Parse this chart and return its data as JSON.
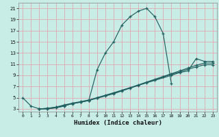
{
  "xlabel": "Humidex (Indice chaleur)",
  "xlim": [
    -0.5,
    23.5
  ],
  "ylim": [
    2.5,
    22
  ],
  "xticks": [
    0,
    1,
    2,
    3,
    4,
    5,
    6,
    7,
    8,
    9,
    10,
    11,
    12,
    13,
    14,
    15,
    16,
    17,
    18,
    19,
    20,
    21,
    22,
    23
  ],
  "yticks": [
    3,
    5,
    7,
    9,
    11,
    13,
    15,
    17,
    19,
    21
  ],
  "bg_color": "#c8ece6",
  "grid_color": "#e0a8b0",
  "line_color": "#206060",
  "lines": [
    {
      "x": [
        0,
        1,
        2,
        3,
        4,
        5,
        6,
        7,
        8,
        9,
        10,
        11,
        12,
        13,
        14,
        15,
        16,
        17,
        18
      ],
      "y": [
        5,
        3.5,
        3,
        3,
        3.2,
        3.5,
        4,
        4.2,
        4.5,
        10,
        13,
        15,
        18,
        19.5,
        20.5,
        21,
        19.5,
        16.5,
        7.5
      ]
    },
    {
      "x": [
        2,
        3,
        4,
        5,
        6,
        7,
        8,
        9,
        18,
        19,
        20,
        21,
        22,
        23
      ],
      "y": [
        3,
        3,
        3.2,
        3.5,
        4,
        4.2,
        4.5,
        5,
        9,
        9.5,
        9.8,
        12,
        11.5,
        11.5
      ]
    },
    {
      "x": [
        2,
        3,
        4,
        5,
        6,
        7,
        8,
        9,
        10,
        11,
        12,
        13,
        14,
        15,
        16,
        17,
        18,
        19,
        20,
        21,
        22,
        23
      ],
      "y": [
        3,
        3.1,
        3.3,
        3.7,
        4.0,
        4.3,
        4.6,
        5.0,
        5.4,
        5.8,
        6.3,
        6.8,
        7.3,
        7.8,
        8.3,
        8.8,
        9.3,
        9.8,
        10.3,
        10.8,
        11.2,
        11.2
      ]
    },
    {
      "x": [
        2,
        3,
        4,
        5,
        6,
        7,
        8,
        9,
        10,
        11,
        12,
        13,
        14,
        15,
        16,
        17,
        18,
        19,
        20,
        21,
        22,
        23
      ],
      "y": [
        3,
        3.1,
        3.3,
        3.6,
        3.9,
        4.2,
        4.5,
        4.9,
        5.3,
        5.7,
        6.2,
        6.7,
        7.2,
        7.7,
        8.2,
        8.7,
        9.2,
        9.6,
        10.1,
        10.5,
        10.9,
        10.9
      ]
    }
  ]
}
